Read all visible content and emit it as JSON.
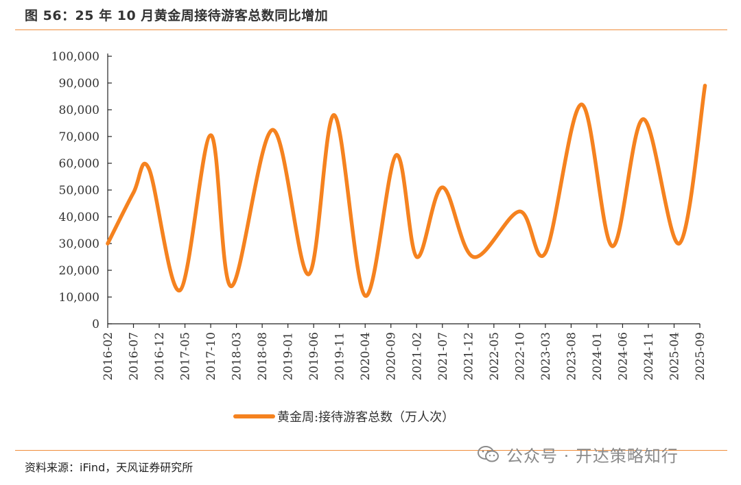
{
  "title": "图 56：25 年 10 月黄金周接待游客总数同比增加",
  "source": "资料来源：iFind，天风证券研究所",
  "watermark": "公众号 · 开达策略知行",
  "watermark_icon": "wechat-icon",
  "colors": {
    "accent": "#f08c3a",
    "series": "#f5821f",
    "axis": "#222222"
  },
  "chart_data": {
    "type": "line",
    "x": [
      "2016-02",
      "2016-07",
      "2016-12",
      "2017-05",
      "2017-10",
      "2018-03",
      "2018-08",
      "2019-01",
      "2019-06",
      "2019-11",
      "2020-04",
      "2020-09",
      "2021-02",
      "2021-07",
      "2021-12",
      "2022-05",
      "2022-10",
      "2023-03",
      "2023-08",
      "2024-01",
      "2024-06",
      "2024-11",
      "2025-04",
      "2025-09"
    ],
    "series": [
      {
        "name": "黄金周:接待游客总数（万人次）",
        "values": [
          30000,
          49000,
          58000,
          12500,
          70500,
          14000,
          72500,
          18500,
          78000,
          10500,
          63000,
          25000,
          51000,
          25000,
          42000,
          26500,
          82000,
          29000,
          76500,
          30000,
          89000
        ],
        "x": [
          "2016-02",
          "2016-07",
          "2016-10",
          "2017-04",
          "2017-10",
          "2018-02",
          "2018-10",
          "2019-05",
          "2019-10",
          "2020-04",
          "2020-10",
          "2021-02",
          "2021-07",
          "2022-01",
          "2022-10",
          "2023-03",
          "2023-10",
          "2024-04",
          "2024-10",
          "2025-05",
          "2025-10"
        ]
      }
    ],
    "y_ticks": [
      "0",
      "10,000",
      "20,000",
      "30,000",
      "40,000",
      "50,000",
      "60,000",
      "70,000",
      "80,000",
      "90,000",
      "100,000"
    ],
    "ylim": [
      0,
      100000
    ],
    "xlabel": "",
    "ylabel": "",
    "grid": false,
    "legend": "bottom-center"
  }
}
